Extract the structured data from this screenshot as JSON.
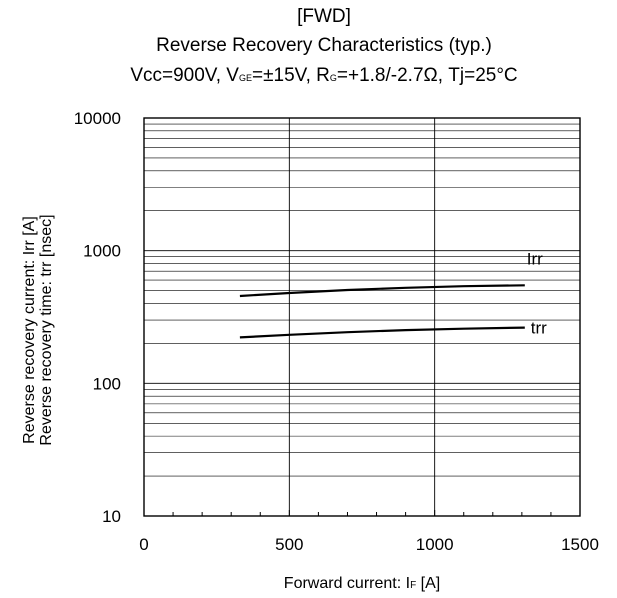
{
  "chart_data": {
    "type": "line",
    "title_lines": [
      "[FWD]",
      "Reverse Recovery Characteristics (typ.)"
    ],
    "conditions": {
      "vcc": "Vcc=900V, ",
      "vge_main": "V",
      "vge_sub": "GE",
      "vge_value": "=±15V, ",
      "rg_main": "R",
      "rg_sub": "G",
      "rg_value": "=+1.8/-2.7Ω, ",
      "tj": "Tj=25°C"
    },
    "xlabel": {
      "text": "Forward current: I",
      "sub": "F",
      "unit": " [A]"
    },
    "ylabel_lines": [
      "Reverse recovery current: Irr [A]",
      "Reverse recovery time: trr [nsec]"
    ],
    "xlim": [
      0,
      1500
    ],
    "ylim": [
      10,
      10000
    ],
    "yscale": "log",
    "grid": true,
    "x_ticks": [
      0,
      500,
      1000,
      1500
    ],
    "x_tick_labels": [
      "0",
      "500",
      "1000",
      "1500"
    ],
    "y_ticks": [
      10,
      100,
      1000,
      10000
    ],
    "y_tick_labels": [
      "10",
      "100",
      "1000",
      "10000"
    ],
    "series": [
      {
        "name": "Irr",
        "x": [
          330,
          500,
          700,
          900,
          1100,
          1310
        ],
        "y": [
          455,
          480,
          505,
          525,
          540,
          548
        ]
      },
      {
        "name": "trr",
        "x": [
          330,
          500,
          700,
          900,
          1100,
          1310
        ],
        "y": [
          222,
          232,
          243,
          252,
          258,
          263
        ]
      }
    ]
  }
}
